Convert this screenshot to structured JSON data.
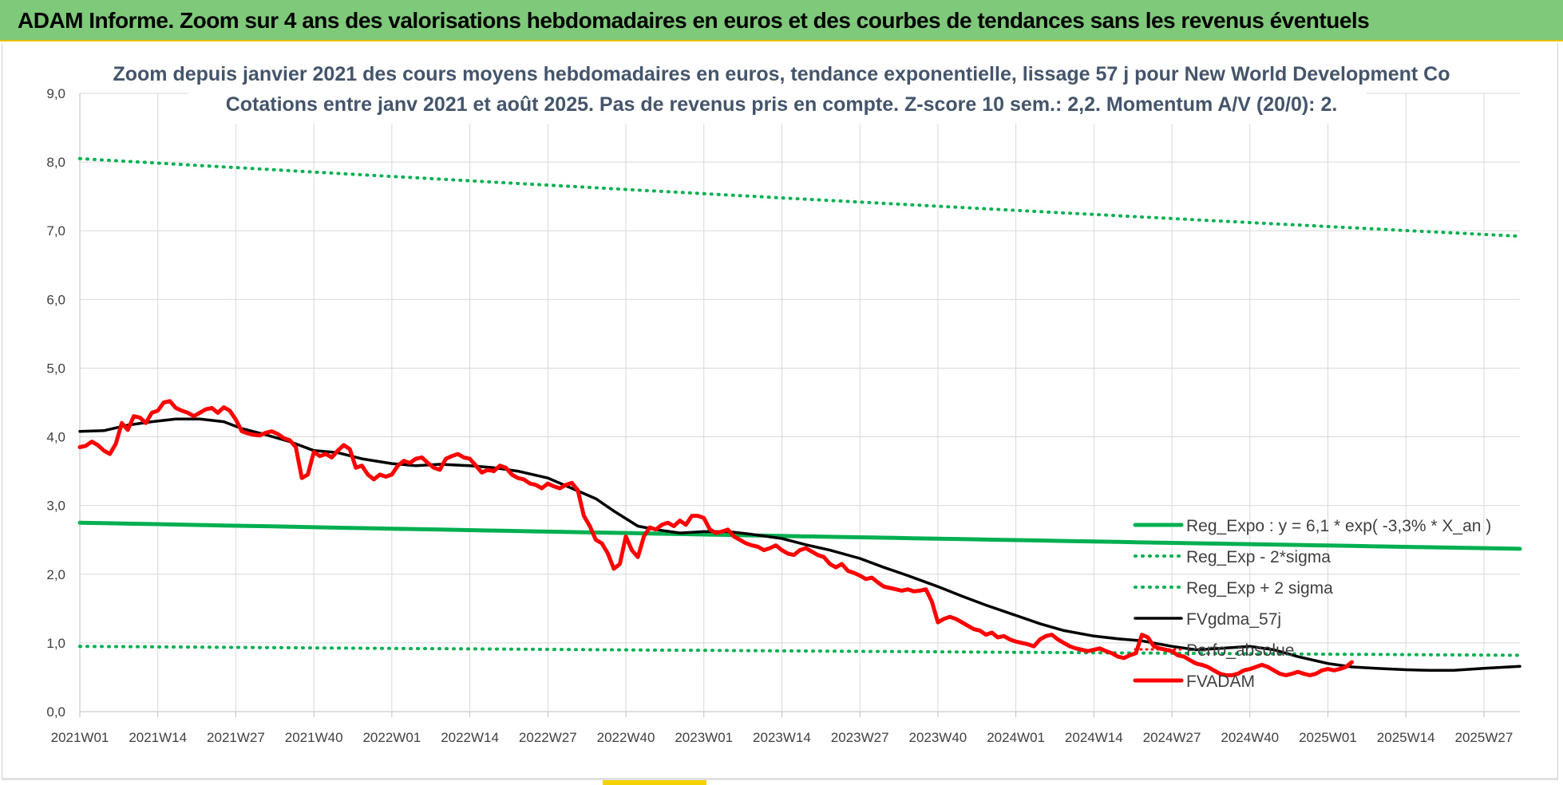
{
  "banner": {
    "title": "ADAM Informe. Zoom sur 4 ans des valorisations hebdomadaires en euros et des courbes de tendances sans les revenus éventuels"
  },
  "colors": {
    "banner": "#7ec97a",
    "reg_green": "#00b050",
    "fvgdma_black": "#000000",
    "fvadam_red": "#ff0000",
    "grid": "#d9d9d9"
  },
  "chart_data": {
    "type": "line",
    "title_lines": [
      "Zoom depuis janvier 2021 des cours moyens hebdomadaires en euros, tendance exponentielle, lissage 57 j pour New World Development Co",
      "Cotations entre janv 2021 et août 2025.  Pas de revenus pris en compte. Z-score 10 sem.: 2,2. Momentum A/V (20/0): 2."
    ],
    "xlabel": "",
    "ylabel": "",
    "ylim": [
      0,
      9
    ],
    "y_ticks": [
      "0,0",
      "1,0",
      "2,0",
      "3,0",
      "4,0",
      "5,0",
      "6,0",
      "7,0",
      "8,0",
      "9,0"
    ],
    "x_ticks": [
      "2021W01",
      "2021W14",
      "2021W27",
      "2021W40",
      "2022W01",
      "2022W14",
      "2022W27",
      "2022W40",
      "2023W01",
      "2023W14",
      "2023W27",
      "2023W40",
      "2024W01",
      "2024W14",
      "2024W27",
      "2024W40",
      "2025W01",
      "2025W14",
      "2025W27"
    ],
    "grid": true,
    "legend_position": "bottom-right",
    "series": [
      {
        "name": "Reg_Expo : y = 6,1 * exp( -3,3% *  X_an )",
        "style": "solid-green",
        "x": [
          "2021W01",
          "2025W33"
        ],
        "y": [
          2.75,
          2.37
        ],
        "kind": "exponential"
      },
      {
        "name": "Reg_Exp - 2*sigma",
        "style": "dotted-green",
        "x": [
          "2021W01",
          "2025W33"
        ],
        "y": [
          0.95,
          0.82
        ],
        "kind": "exponential"
      },
      {
        "name": "Reg_Exp + 2 sigma",
        "style": "dotted-green",
        "x": [
          "2021W01",
          "2025W33"
        ],
        "y": [
          8.05,
          6.92
        ],
        "kind": "exponential"
      },
      {
        "name": "FVgdma_57j",
        "style": "solid-black",
        "points": [
          [
            "2021W01",
            4.08
          ],
          [
            "2021W05",
            4.09
          ],
          [
            "2021W09",
            4.17
          ],
          [
            "2021W13",
            4.22
          ],
          [
            "2021W17",
            4.26
          ],
          [
            "2021W21",
            4.26
          ],
          [
            "2021W25",
            4.22
          ],
          [
            "2021W28",
            4.12
          ],
          [
            "2021W32",
            4.03
          ],
          [
            "2021W36",
            3.93
          ],
          [
            "2021W40",
            3.8
          ],
          [
            "2021W44",
            3.77
          ],
          [
            "2021W48",
            3.68
          ],
          [
            "2022W01",
            3.61
          ],
          [
            "2022W05",
            3.58
          ],
          [
            "2022W09",
            3.6
          ],
          [
            "2022W14",
            3.58
          ],
          [
            "2022W18",
            3.55
          ],
          [
            "2022W22",
            3.5
          ],
          [
            "2022W27",
            3.4
          ],
          [
            "2022W31",
            3.25
          ],
          [
            "2022W35",
            3.1
          ],
          [
            "2022W38",
            2.92
          ],
          [
            "2022W42",
            2.7
          ],
          [
            "2022W45",
            2.65
          ],
          [
            "2022W49",
            2.6
          ],
          [
            "2023W01",
            2.62
          ],
          [
            "2023W05",
            2.62
          ],
          [
            "2023W09",
            2.58
          ],
          [
            "2023W14",
            2.52
          ],
          [
            "2023W18",
            2.43
          ],
          [
            "2023W22",
            2.35
          ],
          [
            "2023W27",
            2.23
          ],
          [
            "2023W31",
            2.1
          ],
          [
            "2023W35",
            1.98
          ],
          [
            "2023W40",
            1.82
          ],
          [
            "2023W44",
            1.68
          ],
          [
            "2023W48",
            1.55
          ],
          [
            "2024W01",
            1.4
          ],
          [
            "2024W05",
            1.28
          ],
          [
            "2024W09",
            1.18
          ],
          [
            "2024W14",
            1.1
          ],
          [
            "2024W18",
            1.06
          ],
          [
            "2024W22",
            1.03
          ],
          [
            "2024W27",
            0.95
          ],
          [
            "2024W31",
            0.9
          ],
          [
            "2024W35",
            0.92
          ],
          [
            "2024W40",
            0.95
          ],
          [
            "2024W44",
            0.9
          ],
          [
            "2024W48",
            0.8
          ],
          [
            "2025W01",
            0.7
          ],
          [
            "2025W05",
            0.65
          ],
          [
            "2025W09",
            0.63
          ],
          [
            "2025W14",
            0.61
          ],
          [
            "2025W18",
            0.6
          ],
          [
            "2025W22",
            0.6
          ],
          [
            "2025W27",
            0.63
          ],
          [
            "2025W33",
            0.66
          ]
        ]
      },
      {
        "name": "Perfo_absolue",
        "style": "dotted-red",
        "points": []
      },
      {
        "name": "FVADAM",
        "style": "solid-red",
        "points": [
          [
            "2021W01",
            3.85
          ],
          [
            "2021W02",
            3.87
          ],
          [
            "2021W03",
            3.93
          ],
          [
            "2021W04",
            3.88
          ],
          [
            "2021W05",
            3.8
          ],
          [
            "2021W06",
            3.75
          ],
          [
            "2021W07",
            3.9
          ],
          [
            "2021W08",
            4.2
          ],
          [
            "2021W09",
            4.1
          ],
          [
            "2021W10",
            4.3
          ],
          [
            "2021W11",
            4.28
          ],
          [
            "2021W12",
            4.2
          ],
          [
            "2021W13",
            4.35
          ],
          [
            "2021W14",
            4.38
          ],
          [
            "2021W15",
            4.5
          ],
          [
            "2021W16",
            4.52
          ],
          [
            "2021W17",
            4.42
          ],
          [
            "2021W18",
            4.38
          ],
          [
            "2021W19",
            4.35
          ],
          [
            "2021W20",
            4.3
          ],
          [
            "2021W21",
            4.35
          ],
          [
            "2021W22",
            4.4
          ],
          [
            "2021W23",
            4.42
          ],
          [
            "2021W24",
            4.35
          ],
          [
            "2021W25",
            4.43
          ],
          [
            "2021W26",
            4.38
          ],
          [
            "2021W27",
            4.25
          ],
          [
            "2021W28",
            4.08
          ],
          [
            "2021W29",
            4.05
          ],
          [
            "2021W30",
            4.03
          ],
          [
            "2021W31",
            4.02
          ],
          [
            "2021W32",
            4.06
          ],
          [
            "2021W33",
            4.08
          ],
          [
            "2021W34",
            4.04
          ],
          [
            "2021W35",
            3.98
          ],
          [
            "2021W36",
            3.95
          ],
          [
            "2021W37",
            3.85
          ],
          [
            "2021W38",
            3.4
          ],
          [
            "2021W39",
            3.45
          ],
          [
            "2021W40",
            3.78
          ],
          [
            "2021W41",
            3.72
          ],
          [
            "2021W42",
            3.75
          ],
          [
            "2021W43",
            3.7
          ],
          [
            "2021W44",
            3.8
          ],
          [
            "2021W45",
            3.88
          ],
          [
            "2021W46",
            3.82
          ],
          [
            "2021W47",
            3.55
          ],
          [
            "2021W48",
            3.58
          ],
          [
            "2021W49",
            3.45
          ],
          [
            "2021W50",
            3.38
          ],
          [
            "2021W51",
            3.45
          ],
          [
            "2021W52",
            3.42
          ],
          [
            "2022W01",
            3.45
          ],
          [
            "2022W02",
            3.58
          ],
          [
            "2022W03",
            3.65
          ],
          [
            "2022W04",
            3.62
          ],
          [
            "2022W05",
            3.68
          ],
          [
            "2022W06",
            3.7
          ],
          [
            "2022W07",
            3.62
          ],
          [
            "2022W08",
            3.55
          ],
          [
            "2022W09",
            3.52
          ],
          [
            "2022W10",
            3.68
          ],
          [
            "2022W11",
            3.72
          ],
          [
            "2022W12",
            3.75
          ],
          [
            "2022W13",
            3.7
          ],
          [
            "2022W14",
            3.68
          ],
          [
            "2022W15",
            3.58
          ],
          [
            "2022W16",
            3.48
          ],
          [
            "2022W17",
            3.52
          ],
          [
            "2022W18",
            3.5
          ],
          [
            "2022W19",
            3.58
          ],
          [
            "2022W20",
            3.55
          ],
          [
            "2022W21",
            3.45
          ],
          [
            "2022W22",
            3.4
          ],
          [
            "2022W23",
            3.38
          ],
          [
            "2022W24",
            3.32
          ],
          [
            "2022W25",
            3.3
          ],
          [
            "2022W26",
            3.25
          ],
          [
            "2022W27",
            3.32
          ],
          [
            "2022W28",
            3.28
          ],
          [
            "2022W29",
            3.25
          ],
          [
            "2022W30",
            3.3
          ],
          [
            "2022W31",
            3.33
          ],
          [
            "2022W32",
            3.22
          ],
          [
            "2022W33",
            2.85
          ],
          [
            "2022W34",
            2.7
          ],
          [
            "2022W35",
            2.5
          ],
          [
            "2022W36",
            2.45
          ],
          [
            "2022W37",
            2.3
          ],
          [
            "2022W38",
            2.08
          ],
          [
            "2022W39",
            2.15
          ],
          [
            "2022W40",
            2.55
          ],
          [
            "2022W41",
            2.35
          ],
          [
            "2022W42",
            2.25
          ],
          [
            "2022W43",
            2.55
          ],
          [
            "2022W44",
            2.68
          ],
          [
            "2022W45",
            2.65
          ],
          [
            "2022W46",
            2.72
          ],
          [
            "2022W47",
            2.75
          ],
          [
            "2022W48",
            2.7
          ],
          [
            "2022W49",
            2.78
          ],
          [
            "2022W50",
            2.72
          ],
          [
            "2022W51",
            2.85
          ],
          [
            "2022W52",
            2.85
          ],
          [
            "2023W01",
            2.82
          ],
          [
            "2023W02",
            2.65
          ],
          [
            "2023W03",
            2.6
          ],
          [
            "2023W04",
            2.62
          ],
          [
            "2023W05",
            2.65
          ],
          [
            "2023W06",
            2.55
          ],
          [
            "2023W07",
            2.5
          ],
          [
            "2023W08",
            2.45
          ],
          [
            "2023W09",
            2.42
          ],
          [
            "2023W10",
            2.4
          ],
          [
            "2023W11",
            2.35
          ],
          [
            "2023W12",
            2.38
          ],
          [
            "2023W13",
            2.42
          ],
          [
            "2023W14",
            2.35
          ],
          [
            "2023W15",
            2.3
          ],
          [
            "2023W16",
            2.28
          ],
          [
            "2023W17",
            2.35
          ],
          [
            "2023W18",
            2.38
          ],
          [
            "2023W19",
            2.33
          ],
          [
            "2023W20",
            2.28
          ],
          [
            "2023W21",
            2.25
          ],
          [
            "2023W22",
            2.15
          ],
          [
            "2023W23",
            2.1
          ],
          [
            "2023W24",
            2.15
          ],
          [
            "2023W25",
            2.05
          ],
          [
            "2023W26",
            2.02
          ],
          [
            "2023W27",
            1.98
          ],
          [
            "2023W28",
            1.93
          ],
          [
            "2023W29",
            1.95
          ],
          [
            "2023W30",
            1.88
          ],
          [
            "2023W31",
            1.82
          ],
          [
            "2023W32",
            1.8
          ],
          [
            "2023W33",
            1.78
          ],
          [
            "2023W34",
            1.76
          ],
          [
            "2023W35",
            1.78
          ],
          [
            "2023W36",
            1.75
          ],
          [
            "2023W37",
            1.76
          ],
          [
            "2023W38",
            1.78
          ],
          [
            "2023W39",
            1.6
          ],
          [
            "2023W40",
            1.3
          ],
          [
            "2023W41",
            1.35
          ],
          [
            "2023W42",
            1.38
          ],
          [
            "2023W43",
            1.35
          ],
          [
            "2023W44",
            1.3
          ],
          [
            "2023W45",
            1.25
          ],
          [
            "2023W46",
            1.2
          ],
          [
            "2023W47",
            1.18
          ],
          [
            "2023W48",
            1.12
          ],
          [
            "2023W49",
            1.15
          ],
          [
            "2023W50",
            1.08
          ],
          [
            "2023W51",
            1.1
          ],
          [
            "2023W52",
            1.05
          ],
          [
            "2024W01",
            1.02
          ],
          [
            "2024W02",
            1.0
          ],
          [
            "2024W03",
            0.98
          ],
          [
            "2024W04",
            0.95
          ],
          [
            "2024W05",
            1.05
          ],
          [
            "2024W06",
            1.1
          ],
          [
            "2024W07",
            1.12
          ],
          [
            "2024W08",
            1.05
          ],
          [
            "2024W09",
            1.0
          ],
          [
            "2024W10",
            0.95
          ],
          [
            "2024W11",
            0.92
          ],
          [
            "2024W12",
            0.9
          ],
          [
            "2024W13",
            0.88
          ],
          [
            "2024W14",
            0.9
          ],
          [
            "2024W15",
            0.92
          ],
          [
            "2024W16",
            0.88
          ],
          [
            "2024W17",
            0.85
          ],
          [
            "2024W18",
            0.8
          ],
          [
            "2024W19",
            0.78
          ],
          [
            "2024W20",
            0.82
          ],
          [
            "2024W21",
            0.85
          ],
          [
            "2024W22",
            1.12
          ],
          [
            "2024W23",
            1.08
          ],
          [
            "2024W24",
            0.95
          ],
          [
            "2024W25",
            0.92
          ],
          [
            "2024W26",
            0.9
          ],
          [
            "2024W27",
            0.88
          ],
          [
            "2024W28",
            0.82
          ],
          [
            "2024W29",
            0.8
          ],
          [
            "2024W30",
            0.75
          ],
          [
            "2024W31",
            0.7
          ],
          [
            "2024W32",
            0.68
          ],
          [
            "2024W33",
            0.65
          ],
          [
            "2024W34",
            0.6
          ],
          [
            "2024W35",
            0.55
          ],
          [
            "2024W36",
            0.53
          ],
          [
            "2024W37",
            0.53
          ],
          [
            "2024W38",
            0.55
          ],
          [
            "2024W39",
            0.6
          ],
          [
            "2024W40",
            0.62
          ],
          [
            "2024W41",
            0.65
          ],
          [
            "2024W42",
            0.68
          ],
          [
            "2024W43",
            0.65
          ],
          [
            "2024W44",
            0.6
          ],
          [
            "2024W45",
            0.55
          ],
          [
            "2024W46",
            0.53
          ],
          [
            "2024W47",
            0.55
          ],
          [
            "2024W48",
            0.58
          ],
          [
            "2024W49",
            0.55
          ],
          [
            "2024W50",
            0.53
          ],
          [
            "2024W51",
            0.55
          ],
          [
            "2024W52",
            0.6
          ],
          [
            "2025W01",
            0.62
          ],
          [
            "2025W02",
            0.6
          ],
          [
            "2025W03",
            0.62
          ],
          [
            "2025W04",
            0.65
          ],
          [
            "2025W05",
            0.72
          ]
        ]
      }
    ]
  }
}
